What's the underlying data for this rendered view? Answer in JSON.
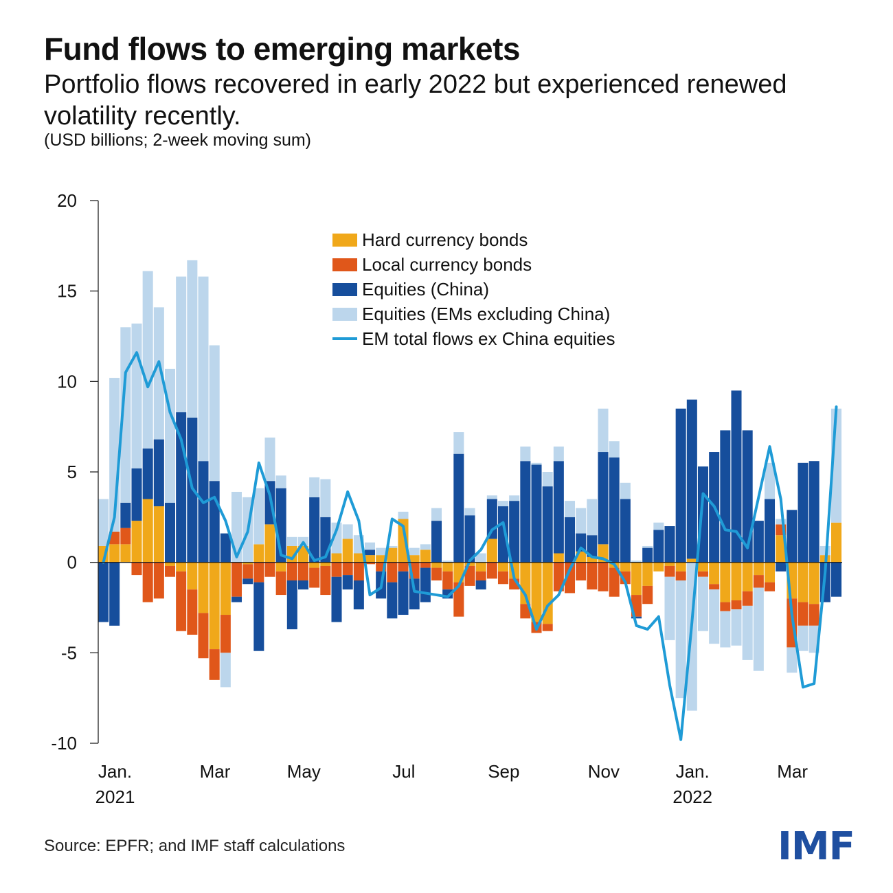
{
  "header": {
    "title": "Fund flows to emerging markets",
    "subtitle": "Portfolio flows recovered in early 2022 but experienced renewed volatility recently.",
    "units": "(USD billions; 2-week moving sum)"
  },
  "footer": {
    "source": "Source: EPFR; and IMF staff calculations",
    "logo": "IMF"
  },
  "colors": {
    "hard_currency_bonds": "#f0a81a",
    "local_currency_bonds": "#e0571a",
    "equities_china": "#164e9c",
    "equities_ex_china": "#bcd6ec",
    "line": "#1f9bd6",
    "logo": "#1f4fa0"
  },
  "chart_data": {
    "type": "bar",
    "stacked": true,
    "ylim": [
      -10,
      20
    ],
    "yticks": [
      "-10",
      "-5",
      "0",
      "5",
      "10",
      "15",
      "20"
    ],
    "x_tick_labels": [
      {
        "index": 0,
        "label": "Jan.",
        "year": "2021"
      },
      {
        "index": 9,
        "label": "Mar",
        "year": ""
      },
      {
        "index": 17,
        "label": "May",
        "year": ""
      },
      {
        "index": 26,
        "label": "Jul",
        "year": ""
      },
      {
        "index": 35,
        "label": "Sep",
        "year": ""
      },
      {
        "index": 44,
        "label": "Nov",
        "year": ""
      },
      {
        "index": 52,
        "label": "Jan.",
        "year": "2022"
      },
      {
        "index": 61,
        "label": "Mar",
        "year": ""
      }
    ],
    "legend_position": "top-center",
    "series": [
      {
        "name": "Hard currency bonds",
        "key": "hard_currency_bonds",
        "values": [
          0.9,
          1.0,
          1.0,
          2.3,
          3.5,
          3.1,
          -0.2,
          -0.5,
          -1.5,
          -2.8,
          -4.8,
          -2.9,
          0.0,
          -0.1,
          1.0,
          2.1,
          -0.5,
          0.9,
          0.9,
          -0.3,
          -0.2,
          0.5,
          1.3,
          0.5,
          0.4,
          0.4,
          0.8,
          2.4,
          0.4,
          0.7,
          -0.3,
          -0.5,
          -1.1,
          -0.2,
          -0.5,
          1.3,
          -0.5,
          -0.9,
          -2.3,
          -3.3,
          -3.4,
          0.5,
          0.0,
          0.6,
          0.3,
          1.0,
          -0.3,
          -0.5,
          -1.8,
          -1.3,
          -0.5,
          -0.2,
          -0.5,
          0.2,
          -0.5,
          -1.2,
          -2.2,
          -2.1,
          -1.6,
          -0.7,
          -1.1,
          1.5,
          -2.0,
          -2.2,
          -2.3,
          0.4,
          2.2
        ]
      },
      {
        "name": "Local currency bonds",
        "key": "local_currency_bonds",
        "values": [
          0.0,
          0.7,
          0.9,
          -0.7,
          -2.2,
          -2.0,
          -0.6,
          -3.3,
          -2.5,
          -2.5,
          -1.7,
          -2.1,
          -1.9,
          -0.8,
          -1.1,
          -0.8,
          -1.3,
          -1.0,
          -1.0,
          -1.1,
          -1.6,
          -0.8,
          -0.7,
          -1.0,
          -0.1,
          -0.5,
          -1.1,
          -0.5,
          -0.9,
          -0.3,
          -0.7,
          -1.0,
          -1.9,
          -1.1,
          -0.5,
          -0.9,
          -0.7,
          -0.6,
          -0.8,
          -0.6,
          -0.4,
          -1.6,
          -1.7,
          -1.0,
          -1.5,
          -1.6,
          -1.6,
          -0.7,
          -1.2,
          -1.0,
          0.0,
          -0.6,
          -0.5,
          0.0,
          -0.3,
          -0.3,
          -0.5,
          -0.5,
          -0.8,
          -0.7,
          -0.5,
          0.6,
          -2.7,
          -1.3,
          -1.2,
          0.0,
          0.0
        ]
      },
      {
        "name": "Equities (China)",
        "key": "equities_china",
        "values": [
          -3.3,
          -3.5,
          1.4,
          2.9,
          2.8,
          3.7,
          3.3,
          8.3,
          8.0,
          5.6,
          4.5,
          1.6,
          -0.3,
          -0.3,
          -3.8,
          2.4,
          4.1,
          -2.7,
          -0.5,
          3.6,
          2.5,
          -2.5,
          -0.8,
          -1.6,
          0.3,
          -1.5,
          -2.0,
          -2.4,
          -1.7,
          -1.9,
          2.3,
          -0.5,
          6.0,
          2.6,
          -0.5,
          2.2,
          3.1,
          3.4,
          5.6,
          5.4,
          4.2,
          5.1,
          2.5,
          1.0,
          1.2,
          5.1,
          5.8,
          3.5,
          -0.1,
          0.8,
          1.8,
          2.0,
          8.5,
          8.8,
          5.3,
          6.1,
          7.3,
          9.5,
          7.3,
          2.3,
          3.5,
          -0.5,
          2.9,
          5.5,
          5.6,
          -2.2,
          -1.9
        ]
      },
      {
        "name": "Equities (EMs excluding China)",
        "key": "equities_ex_china",
        "values": [
          2.6,
          8.5,
          9.7,
          8.0,
          9.8,
          7.3,
          7.4,
          7.5,
          8.7,
          10.2,
          7.5,
          -1.9,
          3.9,
          3.6,
          3.1,
          2.4,
          0.7,
          0.5,
          0.5,
          1.1,
          2.1,
          1.7,
          0.8,
          1.0,
          0.4,
          0.4,
          0.1,
          0.4,
          0.4,
          0.3,
          0.7,
          0.1,
          1.2,
          0.4,
          0.5,
          0.2,
          0.3,
          0.3,
          0.8,
          0.1,
          0.8,
          0.8,
          0.9,
          1.4,
          2.0,
          2.4,
          0.9,
          0.9,
          0.1,
          0.1,
          0.4,
          -3.5,
          -6.5,
          -8.2,
          -3.0,
          -3.0,
          -2.0,
          -2.0,
          -3.0,
          -4.6,
          2.0,
          0.3,
          -1.4,
          -1.4,
          -1.5,
          0.5,
          6.3
        ]
      },
      {
        "name": "EM total flows ex China equities",
        "key": "line",
        "type": "line",
        "values": [
          0.0,
          2.5,
          10.5,
          11.6,
          9.7,
          11.1,
          8.3,
          6.8,
          4.1,
          3.3,
          3.6,
          2.3,
          0.3,
          1.7,
          5.5,
          3.7,
          0.4,
          0.2,
          1.1,
          0.1,
          0.3,
          1.8,
          3.9,
          2.3,
          -1.8,
          -1.4,
          2.4,
          2.0,
          -1.6,
          -1.7,
          -1.8,
          -1.9,
          -1.3,
          0.1,
          0.7,
          1.8,
          2.2,
          -0.9,
          -1.8,
          -3.7,
          -2.4,
          -1.8,
          -0.4,
          0.8,
          0.3,
          0.2,
          -0.1,
          -1.1,
          -3.5,
          -3.7,
          -3.0,
          -6.8,
          -9.8,
          -3.3,
          3.8,
          3.1,
          1.8,
          1.7,
          0.8,
          3.6,
          6.4,
          3.5,
          -2.9,
          -6.9,
          -6.7,
          -0.5,
          8.6
        ]
      }
    ]
  }
}
